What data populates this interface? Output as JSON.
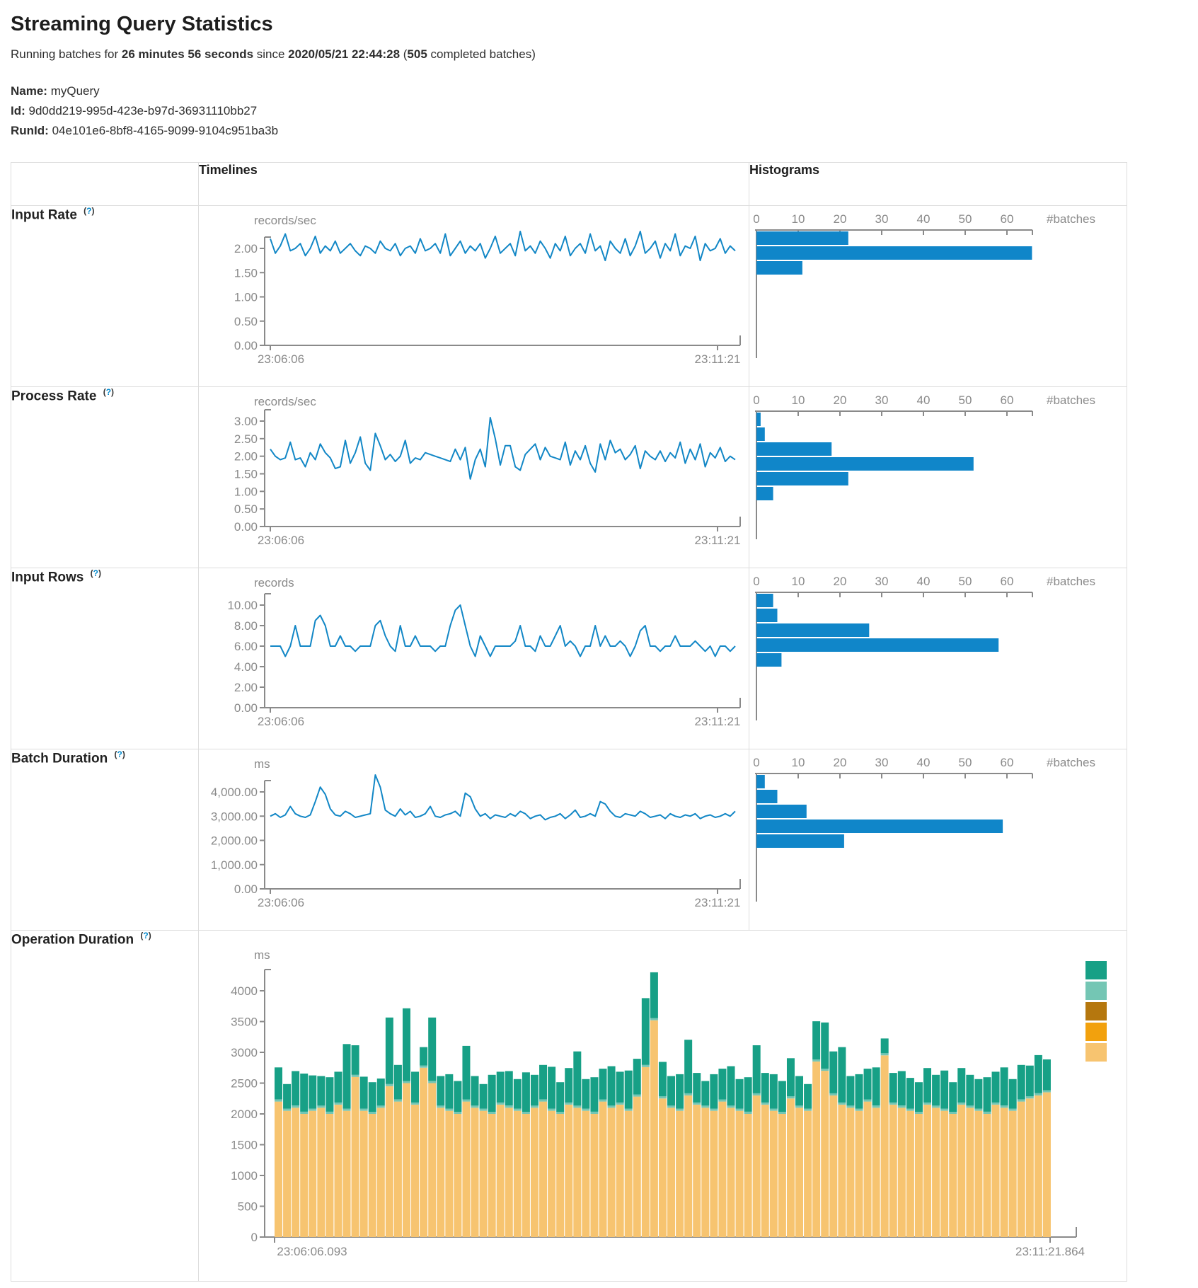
{
  "page": {
    "title": "Streaming Query Statistics",
    "subtitle": {
      "prefix": "Running batches for ",
      "duration": "26 minutes 56 seconds",
      "mid": " since ",
      "timestamp": "2020/05/21 22:44:28",
      "paren_open": " (",
      "batches": "505",
      "paren_close": " completed batches)"
    },
    "meta": {
      "name_label": "Name:",
      "name_value": "myQuery",
      "id_label": "Id:",
      "id_value": "9d0dd219-995d-423e-b97d-36931110bb27",
      "runid_label": "RunId:",
      "runid_value": "04e101e6-8bf8-4165-9099-9104c951ba3b"
    }
  },
  "table_headers": {
    "timelines": "Timelines",
    "histograms": "Histograms"
  },
  "colors": {
    "line_blue": "#1287c6",
    "bar_blue": "#1086c9",
    "axis_gray": "#8a8a8a",
    "help_blue": "#0088cc",
    "legend": [
      "#17a086",
      "#74c6b4",
      "#b5770e",
      "#f2a10d",
      "#f7c470"
    ],
    "stack_tan": "#f7c470",
    "stack_sliver": "#74c6b4",
    "stack_teal": "#17a086"
  },
  "chart_data": [
    {
      "type": "line",
      "row_label": "Input Rate",
      "help": "(?)",
      "unit": "records/sec",
      "x_start": "23:06:06",
      "x_end": "23:11:21",
      "y_ticks": [
        "0.00",
        "0.50",
        "1.00",
        "1.50",
        "2.00"
      ],
      "y_max": 2,
      "values": [
        2.2,
        1.9,
        2.05,
        2.3,
        1.95,
        2.0,
        2.1,
        1.85,
        2.0,
        2.25,
        1.9,
        2.05,
        1.95,
        2.15,
        1.9,
        2.0,
        2.1,
        1.95,
        1.85,
        2.05,
        2.0,
        1.9,
        2.15,
        2.0,
        1.95,
        2.1,
        1.85,
        2.0,
        2.05,
        1.9,
        2.2,
        1.95,
        2.0,
        2.1,
        1.9,
        2.3,
        1.85,
        2.0,
        2.15,
        1.9,
        2.05,
        1.95,
        2.1,
        1.8,
        2.0,
        2.25,
        1.9,
        2.0,
        2.1,
        1.85,
        2.35,
        1.95,
        2.05,
        1.9,
        2.15,
        2.0,
        1.8,
        2.1,
        1.95,
        2.25,
        1.85,
        2.0,
        2.1,
        1.9,
        2.3,
        1.95,
        2.05,
        1.75,
        2.15,
        2.0,
        1.9,
        2.2,
        1.85,
        2.05,
        2.35,
        1.9,
        2.0,
        2.15,
        1.8,
        2.1,
        1.95,
        2.3,
        1.85,
        2.05,
        2.0,
        2.25,
        1.75,
        2.1,
        1.95,
        2.0,
        2.2,
        1.9,
        2.05,
        1.95
      ],
      "histogram": {
        "ticks": [
          "0",
          "10",
          "20",
          "30",
          "40",
          "50",
          "60"
        ],
        "axis_label": "#batches",
        "bins": [
          22,
          66,
          11
        ]
      }
    },
    {
      "type": "line",
      "row_label": "Process Rate",
      "help": "(?)",
      "unit": "records/sec",
      "x_start": "23:06:06",
      "x_end": "23:11:21",
      "y_ticks": [
        "0.00",
        "0.50",
        "1.00",
        "1.50",
        "2.00",
        "2.50",
        "3.00"
      ],
      "y_max": 3,
      "values": [
        2.2,
        2.0,
        1.9,
        1.95,
        2.4,
        1.9,
        1.95,
        1.7,
        2.1,
        1.9,
        2.35,
        2.1,
        1.95,
        1.65,
        1.7,
        2.45,
        1.8,
        2.1,
        2.55,
        1.8,
        1.6,
        2.65,
        2.3,
        1.9,
        2.05,
        1.85,
        2.0,
        2.45,
        1.8,
        1.95,
        1.9,
        2.1,
        2.05,
        2.0,
        1.95,
        1.9,
        1.85,
        2.2,
        1.9,
        2.25,
        1.35,
        1.9,
        2.2,
        1.7,
        3.1,
        2.5,
        1.75,
        2.3,
        2.3,
        1.7,
        1.6,
        2.05,
        2.2,
        2.35,
        1.9,
        2.25,
        2.0,
        1.95,
        1.9,
        2.4,
        1.75,
        2.15,
        1.9,
        2.3,
        1.8,
        1.55,
        2.35,
        1.9,
        2.45,
        2.1,
        2.2,
        1.9,
        2.05,
        2.3,
        1.65,
        2.15,
        2.0,
        1.9,
        2.15,
        1.85,
        2.1,
        1.95,
        2.4,
        1.8,
        2.2,
        1.9,
        2.35,
        1.7,
        2.1,
        1.95,
        2.25,
        1.85,
        2.0,
        1.9
      ],
      "histogram": {
        "ticks": [
          "0",
          "10",
          "20",
          "30",
          "40",
          "50",
          "60"
        ],
        "axis_label": "#batches",
        "bins": [
          1,
          2,
          18,
          52,
          22,
          4
        ]
      }
    },
    {
      "type": "line",
      "row_label": "Input Rows",
      "help": "(?)",
      "unit": "records",
      "x_start": "23:06:06",
      "x_end": "23:11:21",
      "y_ticks": [
        "0.00",
        "2.00",
        "4.00",
        "6.00",
        "8.00",
        "10.00"
      ],
      "y_max": 10,
      "values": [
        6,
        6,
        6,
        5,
        6,
        8,
        6,
        6,
        6,
        8.5,
        9,
        8,
        6,
        6,
        7,
        6,
        6,
        5.5,
        6,
        6,
        6,
        8,
        8.5,
        7,
        6,
        5.5,
        8,
        6,
        6,
        7,
        6,
        6,
        6,
        5.5,
        6,
        6,
        8,
        9.5,
        10,
        8,
        6,
        5,
        7,
        6,
        5,
        6,
        6,
        6,
        6,
        6.5,
        8,
        6,
        6,
        5.5,
        7,
        6,
        6,
        7,
        8,
        6,
        6.5,
        6,
        5,
        6,
        6,
        8,
        6,
        7,
        6,
        6,
        6.5,
        6,
        5,
        6,
        7.5,
        8,
        6,
        6,
        5.5,
        6,
        6,
        7,
        6,
        6,
        6,
        6.5,
        6,
        5.5,
        6,
        5,
        6,
        6,
        5.5,
        6
      ],
      "histogram": {
        "ticks": [
          "0",
          "10",
          "20",
          "30",
          "40",
          "50",
          "60"
        ],
        "axis_label": "#batches",
        "bins": [
          4,
          5,
          27,
          58,
          6
        ]
      }
    },
    {
      "type": "line",
      "row_label": "Batch Duration",
      "help": "(?)",
      "unit": "ms",
      "x_start": "23:06:06",
      "x_end": "23:11:21",
      "y_ticks": [
        "0.00",
        "1,000.00",
        "2,000.00",
        "3,000.00",
        "4,000.00"
      ],
      "y_max": 4000,
      "values": [
        3000,
        3100,
        2950,
        3050,
        3400,
        3100,
        3000,
        2950,
        3050,
        3600,
        4200,
        3900,
        3300,
        3050,
        3000,
        3200,
        3100,
        2950,
        3000,
        3050,
        3100,
        4700,
        4200,
        3250,
        3100,
        3000,
        3300,
        3050,
        3200,
        2950,
        3000,
        3100,
        3400,
        3000,
        2950,
        3050,
        3100,
        3200,
        3000,
        3950,
        3800,
        3300,
        3000,
        3100,
        2900,
        3050,
        3000,
        2950,
        3100,
        3000,
        3200,
        3100,
        2900,
        3000,
        3050,
        2850,
        2950,
        3000,
        3100,
        2900,
        3050,
        3250,
        2950,
        3000,
        3100,
        3000,
        3600,
        3500,
        3200,
        3000,
        2950,
        3100,
        3050,
        3000,
        3200,
        3100,
        2950,
        3000,
        3050,
        2900,
        3100,
        3000,
        2950,
        3050,
        3000,
        3100,
        2900,
        3000,
        3050,
        2950,
        3000,
        3100,
        3000,
        3200
      ],
      "histogram": {
        "ticks": [
          "0",
          "10",
          "20",
          "30",
          "40",
          "50",
          "60"
        ],
        "axis_label": "#batches",
        "bins": [
          2,
          5,
          12,
          59,
          21
        ]
      }
    },
    {
      "type": "stacked_bar",
      "row_label": "Operation Duration",
      "help": "(?)",
      "unit": "ms",
      "x_start": "23:06:06.093",
      "x_end": "23:11:21.864",
      "y_ticks": [
        "0",
        "500",
        "1000",
        "1500",
        "2000",
        "2500",
        "3000",
        "3500",
        "4000"
      ],
      "y_max": 4000,
      "sliver_value": 35,
      "bars_tan_teal": [
        [
          2200,
          520
        ],
        [
          2050,
          400
        ],
        [
          2100,
          560
        ],
        [
          2000,
          620
        ],
        [
          2050,
          540
        ],
        [
          2100,
          480
        ],
        [
          2000,
          560
        ],
        [
          2150,
          500
        ],
        [
          2050,
          1050
        ],
        [
          2600,
          480
        ],
        [
          2050,
          520
        ],
        [
          2000,
          480
        ],
        [
          2100,
          440
        ],
        [
          2450,
          1080
        ],
        [
          2200,
          560
        ],
        [
          2500,
          1180
        ],
        [
          2150,
          500
        ],
        [
          2750,
          300
        ],
        [
          2500,
          1030
        ],
        [
          2100,
          480
        ],
        [
          2050,
          560
        ],
        [
          2000,
          500
        ],
        [
          2200,
          870
        ],
        [
          2100,
          480
        ],
        [
          2050,
          400
        ],
        [
          2000,
          600
        ],
        [
          2150,
          500
        ],
        [
          2100,
          560
        ],
        [
          2050,
          480
        ],
        [
          2000,
          640
        ],
        [
          2100,
          500
        ],
        [
          2200,
          560
        ],
        [
          2050,
          680
        ],
        [
          2000,
          480
        ],
        [
          2150,
          560
        ],
        [
          2100,
          880
        ],
        [
          2050,
          480
        ],
        [
          2000,
          560
        ],
        [
          2200,
          500
        ],
        [
          2100,
          640
        ],
        [
          2150,
          500
        ],
        [
          2050,
          620
        ],
        [
          2280,
          580
        ],
        [
          2760,
          1085
        ],
        [
          3520,
          745
        ],
        [
          2250,
          560
        ],
        [
          2100,
          480
        ],
        [
          2050,
          560
        ],
        [
          2300,
          870
        ],
        [
          2150,
          480
        ],
        [
          2100,
          400
        ],
        [
          2050,
          560
        ],
        [
          2200,
          500
        ],
        [
          2100,
          640
        ],
        [
          2050,
          480
        ],
        [
          2000,
          560
        ],
        [
          2300,
          780
        ],
        [
          2150,
          480
        ],
        [
          2050,
          560
        ],
        [
          2000,
          500
        ],
        [
          2250,
          620
        ],
        [
          2100,
          480
        ],
        [
          2050,
          400
        ],
        [
          2850,
          620
        ],
        [
          2700,
          750
        ],
        [
          2300,
          680
        ],
        [
          2150,
          900
        ],
        [
          2100,
          480
        ],
        [
          2050,
          560
        ],
        [
          2200,
          500
        ],
        [
          2100,
          620
        ],
        [
          2950,
          240
        ],
        [
          2150,
          480
        ],
        [
          2100,
          560
        ],
        [
          2050,
          500
        ],
        [
          2000,
          480
        ],
        [
          2150,
          560
        ],
        [
          2100,
          500
        ],
        [
          2050,
          620
        ],
        [
          2000,
          480
        ],
        [
          2150,
          560
        ],
        [
          2100,
          500
        ],
        [
          2050,
          480
        ],
        [
          2000,
          560
        ],
        [
          2150,
          500
        ],
        [
          2100,
          620
        ],
        [
          2050,
          480
        ],
        [
          2200,
          560
        ],
        [
          2250,
          500
        ],
        [
          2300,
          620
        ],
        [
          2350,
          500
        ]
      ]
    }
  ]
}
